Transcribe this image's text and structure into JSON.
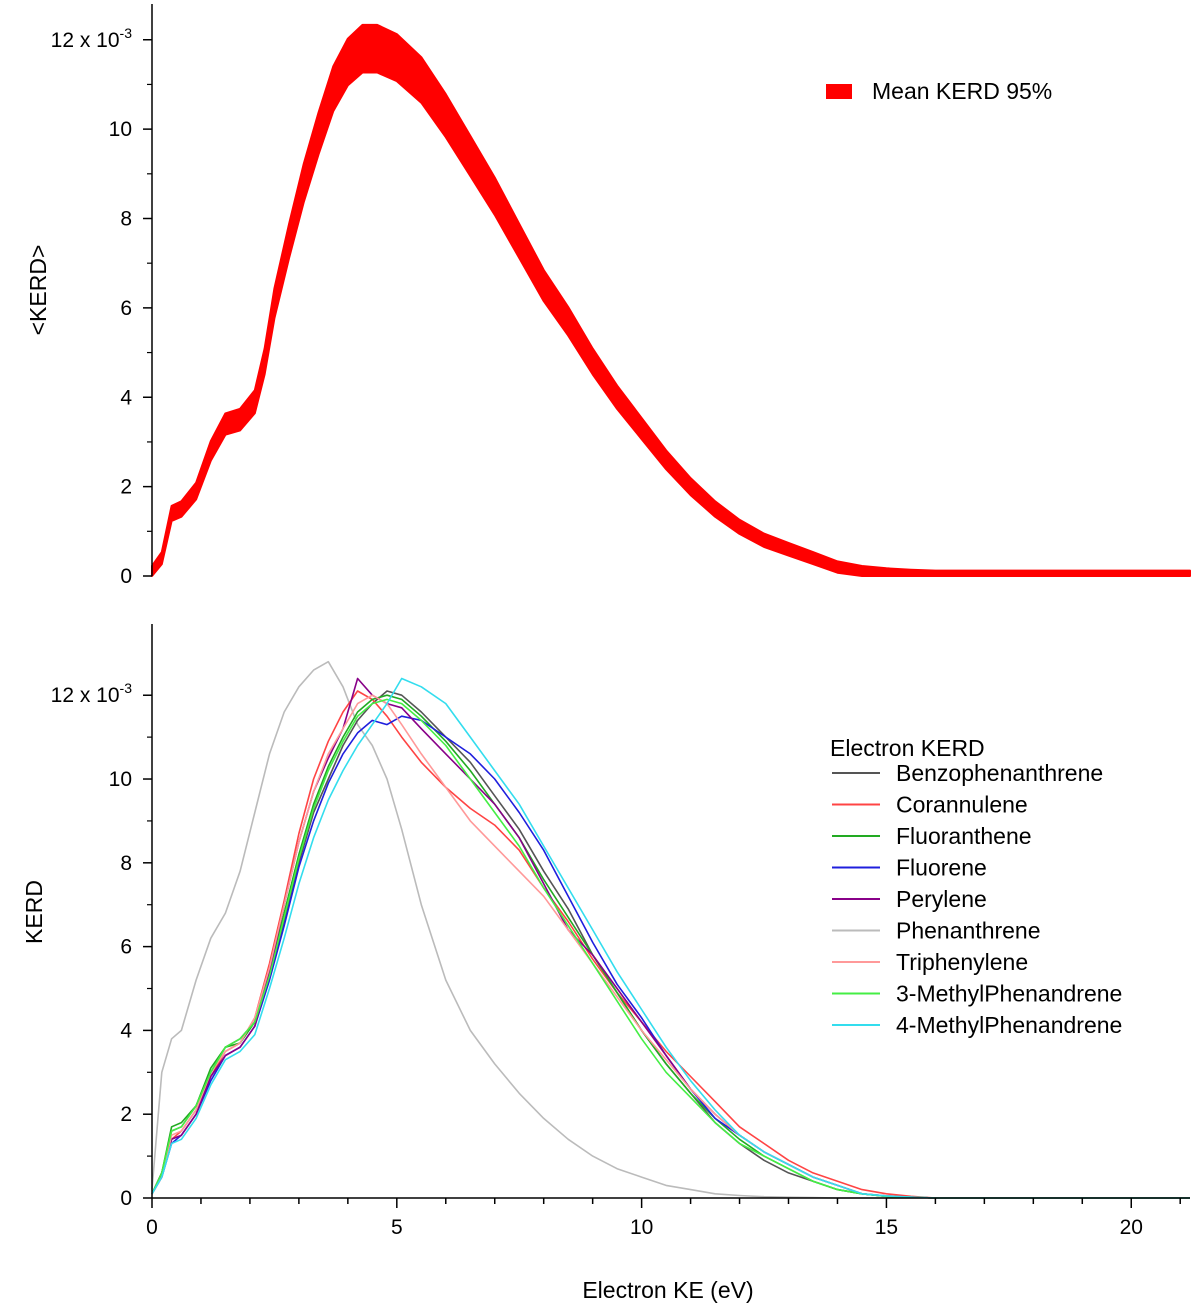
{
  "chart_data": [
    {
      "type": "area",
      "panel": "top",
      "ylabel": "<KERD>",
      "xlabel": "",
      "xlim": [
        0,
        21.2
      ],
      "ylim": [
        0,
        0.0128
      ],
      "y_ticks": [
        0,
        0.002,
        0.004,
        0.006,
        0.008,
        0.01,
        0.012
      ],
      "y_tick_labels": [
        "0",
        "2",
        "4",
        "6",
        "8",
        "10",
        "12 x 10"
      ],
      "y_exponent": "-3",
      "legend": {
        "placement": "top-right",
        "title": "",
        "entries": [
          "Mean KERD 95%"
        ]
      },
      "series": [
        {
          "name": "Mean KERD 95%",
          "color": "#ff0000",
          "band": "95% interval",
          "x": [
            0,
            0.2,
            0.4,
            0.6,
            0.9,
            1.2,
            1.5,
            1.8,
            2.1,
            2.3,
            2.5,
            2.8,
            3.1,
            3.4,
            3.7,
            4.0,
            4.3,
            4.6,
            5.0,
            5.5,
            6.0,
            6.5,
            7.0,
            7.5,
            8.0,
            8.5,
            9.0,
            9.5,
            10.0,
            10.5,
            11.0,
            11.5,
            12.0,
            12.5,
            13.0,
            13.5,
            14.0,
            14.5,
            15.0,
            15.5,
            16.0,
            18.0,
            21.2
          ],
          "values": [
            0.0001,
            0.0004,
            0.0014,
            0.0015,
            0.0019,
            0.0028,
            0.0034,
            0.0035,
            0.0039,
            0.0048,
            0.0061,
            0.0075,
            0.0088,
            0.0099,
            0.0109,
            0.0115,
            0.0118,
            0.0118,
            0.0116,
            0.0111,
            0.0103,
            0.0094,
            0.0085,
            0.0075,
            0.0065,
            0.0057,
            0.0048,
            0.004,
            0.0033,
            0.0026,
            0.002,
            0.0015,
            0.0011,
            0.0008,
            0.0006,
            0.0004,
            0.0002,
            0.0001,
            5e-05,
            2e-05,
            0.0,
            0.0,
            0.0
          ]
        }
      ]
    },
    {
      "type": "line",
      "panel": "bottom",
      "ylabel": "KERD",
      "xlabel": "Electron KE (eV)",
      "xlim": [
        0,
        21.2
      ],
      "ylim": [
        0,
        0.0137
      ],
      "x_ticks": [
        0,
        5,
        10,
        15,
        20
      ],
      "x_tick_labels": [
        "0",
        "5",
        "10",
        "15",
        "20"
      ],
      "y_ticks": [
        0,
        0.002,
        0.004,
        0.006,
        0.008,
        0.01,
        0.012
      ],
      "y_tick_labels": [
        "0",
        "2",
        "4",
        "6",
        "8",
        "10",
        "12 x 10"
      ],
      "y_exponent": "-3",
      "x": [
        0,
        0.2,
        0.4,
        0.6,
        0.9,
        1.2,
        1.5,
        1.8,
        2.1,
        2.4,
        2.7,
        3.0,
        3.3,
        3.6,
        3.9,
        4.2,
        4.5,
        4.8,
        5.1,
        5.5,
        6.0,
        6.5,
        7.0,
        7.5,
        8.0,
        8.5,
        9.0,
        9.5,
        10.0,
        10.5,
        11.0,
        11.5,
        12.0,
        12.5,
        13.0,
        13.5,
        14.0,
        14.5,
        15.0,
        15.5,
        16.0,
        18.0,
        21.2
      ],
      "legend": {
        "placement": "right",
        "title": "Electron KERD",
        "entries": [
          "Benzophenanthrene",
          "Corannulene",
          "Fluoranthene",
          "Fluorene",
          "Perylene",
          "Phenanthrene",
          "Triphenylene",
          "3-MethylPhenandrene",
          "4-MethylPhenandrene"
        ]
      },
      "series": [
        {
          "name": "Benzophenanthrene",
          "color": "#555555",
          "values": [
            0.0001,
            0.0006,
            0.0016,
            0.0017,
            0.0022,
            0.003,
            0.0036,
            0.0038,
            0.0042,
            0.0053,
            0.0066,
            0.008,
            0.0092,
            0.01,
            0.0108,
            0.0114,
            0.0118,
            0.0121,
            0.012,
            0.0116,
            0.011,
            0.0104,
            0.0096,
            0.0088,
            0.0078,
            0.0069,
            0.0058,
            0.0049,
            0.004,
            0.0032,
            0.0025,
            0.0018,
            0.0013,
            0.0009,
            0.0006,
            0.0004,
            0.0002,
            0.0001,
            4e-05,
            2e-05,
            0.0,
            0.0,
            0.0
          ]
        },
        {
          "name": "Corannulene",
          "color": "#ff4444",
          "values": [
            0.0001,
            0.0005,
            0.0014,
            0.0016,
            0.0021,
            0.0029,
            0.0035,
            0.0037,
            0.0043,
            0.0056,
            0.0071,
            0.0087,
            0.01,
            0.0109,
            0.0116,
            0.0121,
            0.0119,
            0.0115,
            0.011,
            0.0104,
            0.0098,
            0.0093,
            0.0089,
            0.0083,
            0.0074,
            0.0066,
            0.0057,
            0.0049,
            0.0042,
            0.0035,
            0.0029,
            0.0023,
            0.0017,
            0.0013,
            0.0009,
            0.0006,
            0.0004,
            0.0002,
            0.0001,
            4e-05,
            0.0,
            0.0,
            0.0
          ]
        },
        {
          "name": "Fluoranthene",
          "color": "#22aa22",
          "values": [
            0.0001,
            0.0006,
            0.0017,
            0.0018,
            0.0022,
            0.0031,
            0.0036,
            0.0037,
            0.0042,
            0.0054,
            0.0068,
            0.0082,
            0.0094,
            0.0103,
            0.011,
            0.0116,
            0.0119,
            0.012,
            0.0119,
            0.0115,
            0.0109,
            0.0102,
            0.0094,
            0.0086,
            0.0076,
            0.0067,
            0.0058,
            0.0049,
            0.004,
            0.0032,
            0.0025,
            0.0019,
            0.0014,
            0.001,
            0.0007,
            0.0004,
            0.0002,
            0.0001,
            4e-05,
            2e-05,
            0.0,
            0.0,
            0.0
          ]
        },
        {
          "name": "Fluorene",
          "color": "#1f1fdd",
          "values": [
            0.0001,
            0.0005,
            0.0013,
            0.0015,
            0.002,
            0.0028,
            0.0034,
            0.0036,
            0.0041,
            0.0052,
            0.0065,
            0.0079,
            0.009,
            0.0099,
            0.0106,
            0.0111,
            0.0114,
            0.0113,
            0.0115,
            0.0114,
            0.011,
            0.0106,
            0.01,
            0.0092,
            0.0083,
            0.0072,
            0.0061,
            0.0051,
            0.0043,
            0.0034,
            0.0026,
            0.0019,
            0.0015,
            0.0011,
            0.0008,
            0.0005,
            0.0003,
            0.0001,
            5e-05,
            2e-05,
            0.0,
            0.0,
            0.0
          ]
        },
        {
          "name": "Perylene",
          "color": "#880088",
          "values": [
            0.0001,
            0.0006,
            0.0014,
            0.0015,
            0.002,
            0.0029,
            0.0034,
            0.0036,
            0.0041,
            0.0054,
            0.007,
            0.0085,
            0.0097,
            0.0105,
            0.0112,
            0.0124,
            0.012,
            0.0118,
            0.0117,
            0.0112,
            0.0106,
            0.01,
            0.0094,
            0.0086,
            0.0075,
            0.0064,
            0.0058,
            0.005,
            0.0042,
            0.0034,
            0.0026,
            0.002,
            0.0015,
            0.0011,
            0.0008,
            0.0005,
            0.0003,
            0.0001,
            5e-05,
            2e-05,
            0.0,
            0.0,
            0.0
          ]
        },
        {
          "name": "Phenanthrene",
          "color": "#bbbbbb",
          "values": [
            0.0002,
            0.003,
            0.0038,
            0.004,
            0.0052,
            0.0062,
            0.0068,
            0.0078,
            0.0092,
            0.0106,
            0.0116,
            0.0122,
            0.0126,
            0.0128,
            0.0122,
            0.0113,
            0.0108,
            0.01,
            0.0088,
            0.007,
            0.0052,
            0.004,
            0.0032,
            0.0025,
            0.0019,
            0.0014,
            0.001,
            0.0007,
            0.0005,
            0.0003,
            0.0002,
            0.0001,
            6e-05,
            3e-05,
            2e-05,
            1e-05,
            0.0,
            0.0,
            0.0,
            0.0,
            0.0,
            0.0,
            0.0
          ]
        },
        {
          "name": "Triphenylene",
          "color": "#ff9999",
          "values": [
            0.0001,
            0.0005,
            0.0015,
            0.0016,
            0.0021,
            0.003,
            0.0035,
            0.0037,
            0.0043,
            0.0055,
            0.007,
            0.0085,
            0.0097,
            0.0106,
            0.0112,
            0.0118,
            0.012,
            0.0118,
            0.0113,
            0.0106,
            0.0098,
            0.009,
            0.0084,
            0.0078,
            0.0072,
            0.0064,
            0.0056,
            0.0048,
            0.004,
            0.0033,
            0.0026,
            0.002,
            0.0015,
            0.0011,
            0.0008,
            0.0005,
            0.0003,
            0.0001,
            5e-05,
            2e-05,
            0.0,
            0.0,
            0.0
          ]
        },
        {
          "name": "3-MethylPhenandrene",
          "color": "#44ee44",
          "values": [
            0.0001,
            0.0006,
            0.0016,
            0.0017,
            0.0022,
            0.003,
            0.0036,
            0.0038,
            0.0042,
            0.0053,
            0.0067,
            0.0081,
            0.0093,
            0.0102,
            0.0109,
            0.0115,
            0.0118,
            0.0119,
            0.0118,
            0.0114,
            0.0108,
            0.01,
            0.0092,
            0.0084,
            0.0074,
            0.0065,
            0.0056,
            0.0047,
            0.0038,
            0.003,
            0.0024,
            0.0018,
            0.0013,
            0.001,
            0.0007,
            0.0004,
            0.0002,
            0.0001,
            4e-05,
            2e-05,
            0.0,
            0.0,
            0.0
          ]
        },
        {
          "name": "4-MethylPhenandrene",
          "color": "#33ddee",
          "values": [
            0.0001,
            0.0005,
            0.0013,
            0.0014,
            0.0019,
            0.0027,
            0.0033,
            0.0035,
            0.0039,
            0.005,
            0.0062,
            0.0075,
            0.0086,
            0.0095,
            0.0102,
            0.0108,
            0.0113,
            0.0118,
            0.0124,
            0.0122,
            0.0118,
            0.011,
            0.0102,
            0.0094,
            0.0084,
            0.0074,
            0.0064,
            0.0054,
            0.0045,
            0.0036,
            0.0028,
            0.0021,
            0.0015,
            0.0011,
            0.0008,
            0.0005,
            0.0003,
            0.0001,
            5e-05,
            2e-05,
            0.0,
            0.0,
            0.0
          ]
        }
      ]
    }
  ]
}
